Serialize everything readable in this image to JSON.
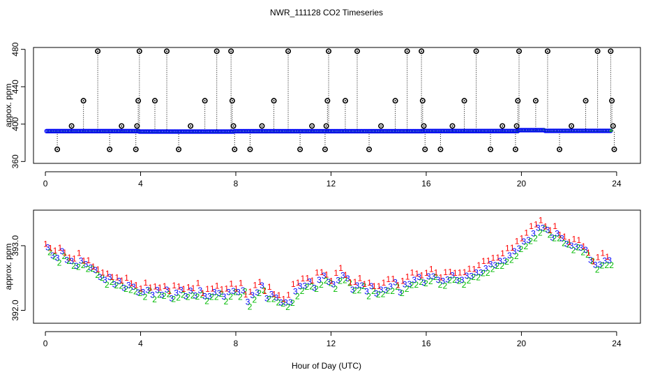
{
  "chart_data": [
    {
      "type": "scatter",
      "title": "NWR_111128  CO2 Timeseries",
      "xlabel": "",
      "ylabel": "appox. ppm",
      "xlim": [
        -0.5,
        25
      ],
      "ylim": [
        358,
        482
      ],
      "xticks": [
        0,
        4,
        8,
        12,
        16,
        20,
        24
      ],
      "yticks": [
        360,
        400,
        440,
        480
      ],
      "colors": {
        "baseline": "#0000ff",
        "baseline_overlay": "#00aa00",
        "outlier": "#000000",
        "drop_line": "#000000"
      },
      "baseline": {
        "x_start": 0.05,
        "x_end": 23.75,
        "x_step": 0.05,
        "segments": [
          {
            "from": 0.0,
            "to": 3.9,
            "value": 392.5
          },
          {
            "from": 3.9,
            "to": 7.9,
            "value": 392.0
          },
          {
            "from": 7.9,
            "to": 15.9,
            "value": 392.4
          },
          {
            "from": 15.9,
            "to": 19.9,
            "value": 392.6
          },
          {
            "from": 19.9,
            "to": 21.0,
            "value": 393.5
          },
          {
            "from": 21.0,
            "to": 24.0,
            "value": 392.8
          }
        ]
      },
      "outliers": [
        {
          "x": 0.5,
          "y": 373
        },
        {
          "x": 1.1,
          "y": 398
        },
        {
          "x": 1.6,
          "y": 425
        },
        {
          "x": 2.2,
          "y": 478
        },
        {
          "x": 2.7,
          "y": 373
        },
        {
          "x": 3.2,
          "y": 398
        },
        {
          "x": 3.8,
          "y": 373
        },
        {
          "x": 3.85,
          "y": 398
        },
        {
          "x": 3.9,
          "y": 425
        },
        {
          "x": 3.95,
          "y": 478
        },
        {
          "x": 4.6,
          "y": 425
        },
        {
          "x": 5.1,
          "y": 478
        },
        {
          "x": 5.6,
          "y": 373
        },
        {
          "x": 6.1,
          "y": 398
        },
        {
          "x": 6.7,
          "y": 425
        },
        {
          "x": 7.2,
          "y": 478
        },
        {
          "x": 7.8,
          "y": 478
        },
        {
          "x": 7.85,
          "y": 425
        },
        {
          "x": 7.9,
          "y": 398
        },
        {
          "x": 7.95,
          "y": 373
        },
        {
          "x": 8.6,
          "y": 373
        },
        {
          "x": 9.1,
          "y": 398
        },
        {
          "x": 9.6,
          "y": 425
        },
        {
          "x": 10.2,
          "y": 478
        },
        {
          "x": 10.7,
          "y": 373
        },
        {
          "x": 11.2,
          "y": 398
        },
        {
          "x": 11.75,
          "y": 373
        },
        {
          "x": 11.8,
          "y": 398
        },
        {
          "x": 11.85,
          "y": 425
        },
        {
          "x": 11.9,
          "y": 478
        },
        {
          "x": 12.6,
          "y": 425
        },
        {
          "x": 13.1,
          "y": 478
        },
        {
          "x": 13.6,
          "y": 373
        },
        {
          "x": 14.1,
          "y": 398
        },
        {
          "x": 14.7,
          "y": 425
        },
        {
          "x": 15.2,
          "y": 478
        },
        {
          "x": 15.8,
          "y": 478
        },
        {
          "x": 15.85,
          "y": 425
        },
        {
          "x": 15.9,
          "y": 398
        },
        {
          "x": 15.95,
          "y": 373
        },
        {
          "x": 16.6,
          "y": 373
        },
        {
          "x": 17.1,
          "y": 398
        },
        {
          "x": 17.6,
          "y": 425
        },
        {
          "x": 18.1,
          "y": 478
        },
        {
          "x": 18.7,
          "y": 373
        },
        {
          "x": 19.2,
          "y": 398
        },
        {
          "x": 19.75,
          "y": 373
        },
        {
          "x": 19.8,
          "y": 398
        },
        {
          "x": 19.85,
          "y": 425
        },
        {
          "x": 19.9,
          "y": 478
        },
        {
          "x": 20.6,
          "y": 425
        },
        {
          "x": 21.1,
          "y": 478
        },
        {
          "x": 21.6,
          "y": 373
        },
        {
          "x": 22.1,
          "y": 398
        },
        {
          "x": 22.7,
          "y": 425
        },
        {
          "x": 23.2,
          "y": 478
        },
        {
          "x": 23.75,
          "y": 478
        },
        {
          "x": 23.8,
          "y": 425
        },
        {
          "x": 23.85,
          "y": 398
        },
        {
          "x": 23.9,
          "y": 373
        }
      ]
    },
    {
      "type": "scatter",
      "title": "",
      "xlabel": "Hour of Day (UTC)",
      "ylabel": "approx. ppm",
      "xlim": [
        -0.5,
        25
      ],
      "ylim": [
        391.8,
        393.55
      ],
      "xticks": [
        0,
        4,
        8,
        12,
        16,
        20,
        24
      ],
      "yticks": [
        392.0,
        393.0
      ],
      "ytick_labels": [
        "392.0",
        "393.0"
      ],
      "series": [
        {
          "name": "1",
          "symbol": "1",
          "color": "#ff0000",
          "offset": 0.09
        },
        {
          "name": "3",
          "symbol": "3",
          "color": "#0000ff",
          "offset": 0.0
        },
        {
          "name": "2",
          "symbol": "2",
          "color": "#00bb00",
          "offset": -0.05
        }
      ],
      "x_start": 0.1,
      "x_step": 0.2,
      "base_values": [
        392.97,
        392.88,
        392.82,
        392.9,
        392.8,
        392.76,
        392.72,
        392.78,
        392.7,
        392.68,
        392.62,
        392.55,
        392.48,
        392.5,
        392.42,
        392.45,
        392.38,
        392.4,
        392.35,
        392.3,
        392.28,
        392.35,
        392.25,
        392.3,
        392.26,
        392.32,
        392.22,
        392.28,
        392.3,
        392.24,
        392.3,
        392.26,
        392.32,
        392.2,
        392.24,
        392.28,
        392.3,
        392.22,
        392.27,
        392.32,
        392.28,
        392.34,
        392.14,
        392.22,
        392.3,
        392.38,
        392.22,
        392.26,
        392.18,
        392.14,
        392.12,
        392.16,
        392.3,
        392.36,
        392.4,
        392.44,
        392.38,
        392.48,
        392.52,
        392.46,
        392.4,
        392.5,
        392.55,
        392.48,
        392.34,
        392.38,
        392.42,
        392.3,
        392.36,
        392.28,
        392.32,
        392.35,
        392.38,
        392.42,
        392.3,
        392.4,
        392.44,
        392.48,
        392.5,
        392.45,
        392.52,
        392.56,
        392.48,
        392.44,
        392.5,
        392.54,
        392.5,
        392.48,
        392.52,
        392.55,
        392.58,
        392.62,
        392.66,
        392.7,
        392.72,
        392.76,
        392.8,
        392.86,
        392.9,
        392.98,
        393.06,
        393.12,
        393.2,
        393.26,
        393.3,
        393.24,
        393.16,
        393.2,
        393.1,
        393.05,
        393.0,
        393.02,
        392.98,
        392.92,
        392.8,
        392.7,
        392.74,
        392.78,
        392.76
      ]
    }
  ]
}
